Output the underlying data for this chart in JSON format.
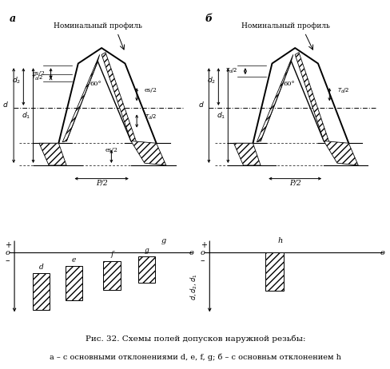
{
  "title_a": "а",
  "title_b": "б",
  "label_nominal": "Номинальный профиль",
  "label_g": "g",
  "label_h": "h",
  "label_f": "f",
  "label_e": "e",
  "label_d_bar": "d",
  "caption_line1": "Рис. 32. Схемы полей допусков наружной резьбы:",
  "caption_line2": "а – с основными отклонениями d, e, f, g; б – с основньм отклонением h",
  "bg_color": "#ffffff"
}
